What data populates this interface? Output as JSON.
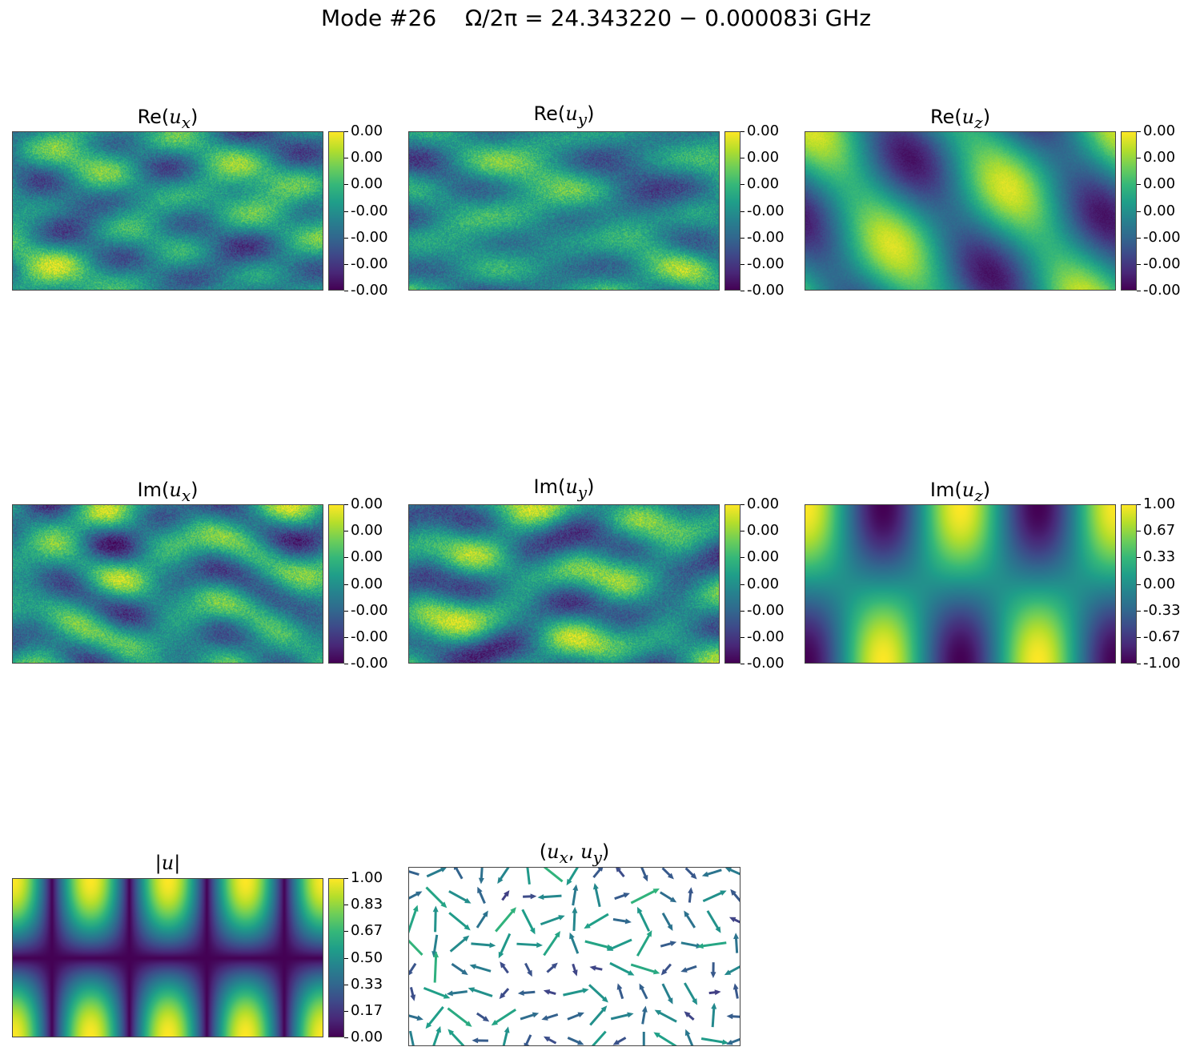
{
  "suptitle": "Mode #26    Ω/2π = 24.343220 − 0.000083i GHz",
  "chart_data": [
    {
      "type": "heatmap",
      "id": "re_ux",
      "title_prefix": "Re(",
      "title_var": "u",
      "title_sub": "x",
      "title_suffix": ")",
      "colorbar_ticks": [
        "0.00",
        "0.00",
        "0.00",
        "-0.00",
        "-0.00",
        "-0.00",
        "-0.00"
      ],
      "colormap": "viridis",
      "pattern": "noise"
    },
    {
      "type": "heatmap",
      "id": "re_uy",
      "title_prefix": "Re(",
      "title_var": "u",
      "title_sub": "y",
      "title_suffix": ")",
      "colorbar_ticks": [
        "0.00",
        "0.00",
        "0.00",
        "-0.00",
        "-0.00",
        "-0.00",
        "-0.00"
      ],
      "colormap": "viridis",
      "pattern": "noise"
    },
    {
      "type": "heatmap",
      "id": "re_uz",
      "title_prefix": "Re(",
      "title_var": "u",
      "title_sub": "z",
      "title_suffix": ")",
      "colorbar_ticks": [
        "0.00",
        "0.00",
        "0.00",
        "0.00",
        "-0.00",
        "-0.00",
        "-0.00"
      ],
      "colormap": "viridis",
      "pattern": "smooth-waves"
    },
    {
      "type": "heatmap",
      "id": "im_ux",
      "title_prefix": "Im(",
      "title_var": "u",
      "title_sub": "x",
      "title_suffix": ")",
      "colorbar_ticks": [
        "0.00",
        "0.00",
        "0.00",
        "0.00",
        "-0.00",
        "-0.00",
        "-0.00"
      ],
      "colormap": "viridis",
      "pattern": "noise"
    },
    {
      "type": "heatmap",
      "id": "im_uy",
      "title_prefix": "Im(",
      "title_var": "u",
      "title_sub": "y",
      "title_suffix": ")",
      "colorbar_ticks": [
        "0.00",
        "0.00",
        "0.00",
        "0.00",
        "-0.00",
        "-0.00",
        "-0.00"
      ],
      "colormap": "viridis",
      "pattern": "noise"
    },
    {
      "type": "heatmap",
      "id": "im_uz",
      "title_prefix": "Im(",
      "title_var": "u",
      "title_sub": "z",
      "title_suffix": ")",
      "colorbar_ticks": [
        "1.00",
        "0.67",
        "0.33",
        "0.00",
        "-0.33",
        "-0.67",
        "-1.00"
      ],
      "colormap": "viridis",
      "pattern": "standing-wave",
      "value_range": [
        -1.0,
        1.0
      ]
    },
    {
      "type": "heatmap",
      "id": "abs_u",
      "title_prefix": "|",
      "title_var": "u",
      "title_sub": "",
      "title_suffix": "|",
      "colorbar_ticks": [
        "1.00",
        "0.83",
        "0.67",
        "0.50",
        "0.33",
        "0.17",
        "0.00"
      ],
      "colormap": "viridis",
      "pattern": "standing-wave-abs",
      "value_range": [
        0.0,
        1.0
      ]
    },
    {
      "type": "quiver",
      "id": "uxuy",
      "title": "(u",
      "title_parts": [
        "(",
        "u",
        "x",
        ", ",
        "u",
        "y",
        ")"
      ],
      "colormap": "viridis"
    }
  ]
}
